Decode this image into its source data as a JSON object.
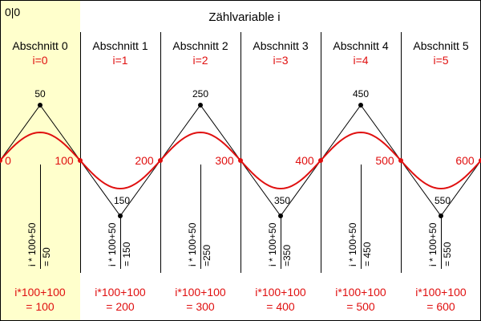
{
  "origin_label": "0|0",
  "title": "Zählvariable i",
  "colors": {
    "highlight": "#ffffcc",
    "red": "#e01010",
    "black": "#000000"
  },
  "sections": [
    {
      "name": "Abschnitt 0",
      "index": "i=0",
      "start": "0",
      "peak": "50",
      "formula_a": "i * 100+50",
      "formula_b": "= 50",
      "bottom_a": "i*100+100",
      "bottom_b": "= 100"
    },
    {
      "name": "Abschnitt 1",
      "index": "i=1",
      "start": "100",
      "peak": "150",
      "formula_a": "i * 100+50",
      "formula_b": "= 150",
      "bottom_a": "i*100+100",
      "bottom_b": "= 200"
    },
    {
      "name": "Abschnitt 2",
      "index": "i=2",
      "start": "200",
      "peak": "250",
      "formula_a": "i * 100+50",
      "formula_b": "=250",
      "bottom_a": "i*100+100",
      "bottom_b": "= 300"
    },
    {
      "name": "Abschnitt 3",
      "index": "i=3",
      "start": "300",
      "peak": "350",
      "formula_a": "i * 100+50",
      "formula_b": "=350",
      "bottom_a": "i*100+100",
      "bottom_b": "= 400"
    },
    {
      "name": "Abschnitt 4",
      "index": "i=4",
      "start": "400",
      "peak": "450",
      "formula_a": "i * 100+50",
      "formula_b": "= 450",
      "bottom_a": "i*100+100",
      "bottom_b": "= 500"
    },
    {
      "name": "Abschnitt 5",
      "index": "i=5",
      "start": "500",
      "peak": "550",
      "formula_a": "i * 100+50",
      "formula_b": "= 550",
      "bottom_a": "i*100+100",
      "bottom_b": "= 600"
    }
  ],
  "end_label": "600"
}
